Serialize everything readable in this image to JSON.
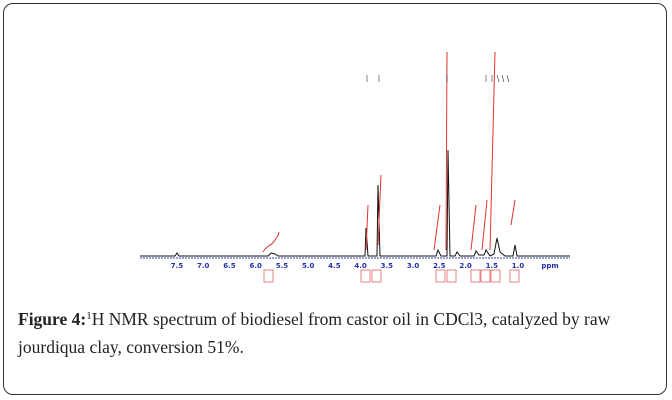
{
  "figure": {
    "axis_labels": [
      "7.5",
      "7.0",
      "6.5",
      "6.0",
      "5.5",
      "5.0",
      "4.5",
      "4.0",
      "3.5",
      "3.0",
      "2.5",
      "2.0",
      "1.5",
      "1.0"
    ],
    "axis_unit": "ppm"
  },
  "caption": {
    "label": "Figure 4:",
    "superscript": "1",
    "text": "H NMR spectrum of biodiesel from castor oil in CDCl3, catalyzed by raw jourdiqua clay, conversion 51%."
  }
}
